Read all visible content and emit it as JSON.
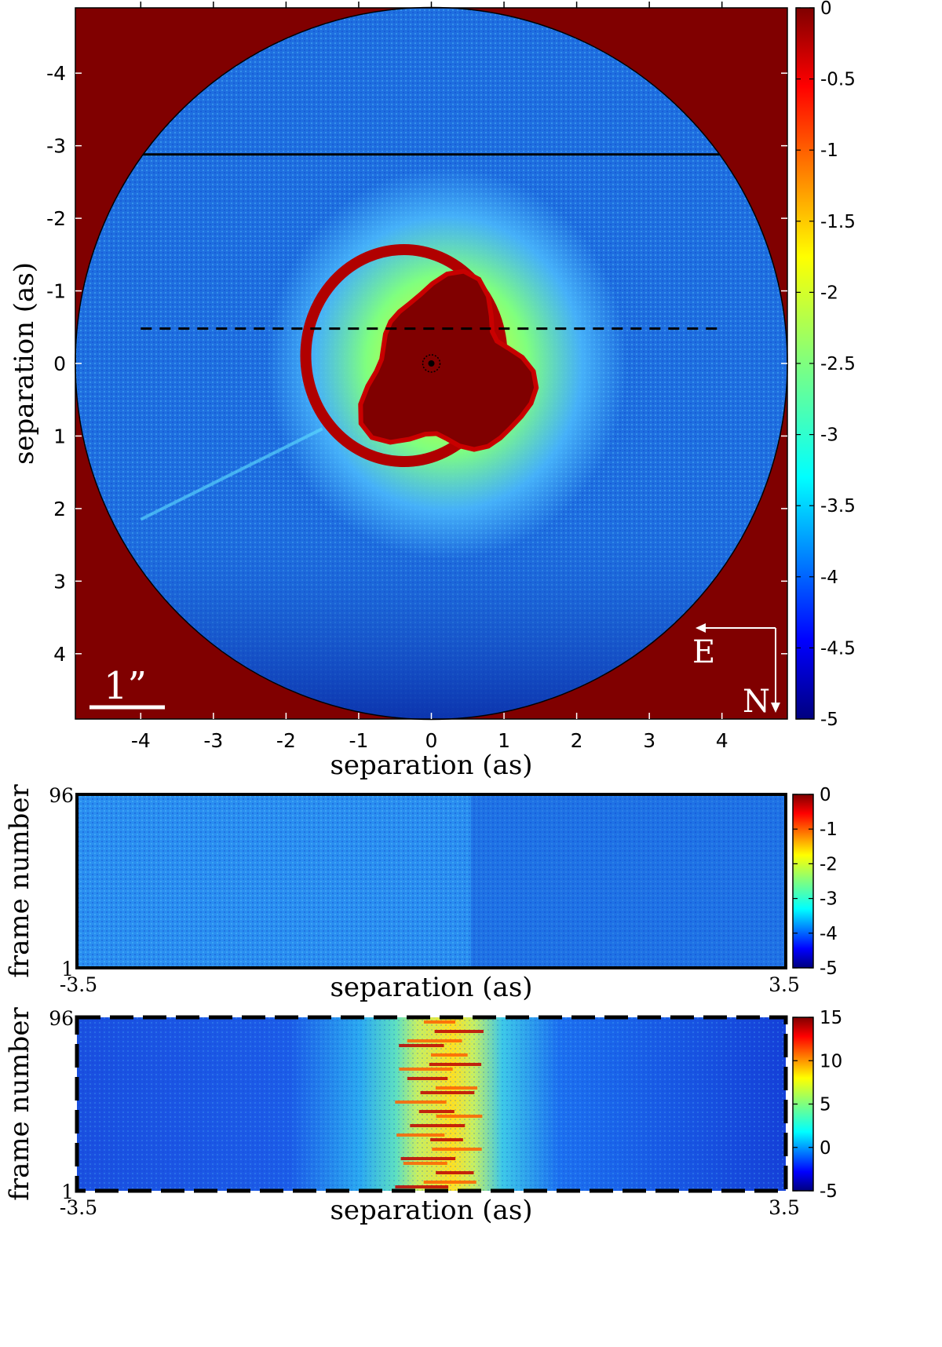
{
  "chart_data": [
    {
      "type": "heatmap",
      "id": "main-image",
      "xlabel": "separation (as)",
      "ylabel": "separation (as)",
      "xlim": [
        -4.9,
        4.9
      ],
      "ylim": [
        -4.9,
        4.9
      ],
      "x_ticks": [
        -4,
        -3,
        -2,
        -1,
        0,
        1,
        2,
        3,
        4
      ],
      "x_tick_labels": [
        "-4",
        "-3",
        "-2",
        "-1",
        "0",
        "1",
        "2",
        "3",
        "4"
      ],
      "y_ticks": [
        -4,
        -3,
        -2,
        -1,
        0,
        1,
        2,
        3,
        4
      ],
      "y_tick_labels": [
        "-4",
        "-3",
        "-2",
        "-1",
        "0",
        "1",
        "2",
        "3",
        "4"
      ],
      "colorbar": {
        "range": [
          -5,
          0
        ],
        "ticks": [
          0,
          -0.5,
          -1,
          -1.5,
          -2,
          -2.5,
          -3,
          -3.5,
          -4,
          -4.5,
          -5
        ],
        "tick_labels": [
          "0",
          "-0.5",
          "-1",
          "-1.5",
          "-2",
          "-2.5",
          "-3",
          "-3.5",
          "-4",
          "-4.5",
          "-5"
        ]
      },
      "solid_cut_y": -2.88,
      "dashed_cut_y": -0.48,
      "scale_bar_label": "1”",
      "compass": {
        "east": "E",
        "north": "N"
      }
    },
    {
      "type": "heatmap",
      "id": "solid-cut-panel",
      "xlabel": "separation (as)",
      "ylabel": "frame number",
      "xlim": [
        -3.5,
        3.5
      ],
      "x_tick_labels": [
        "-3.5",
        "3.5"
      ],
      "ylim": [
        1,
        96
      ],
      "y_tick_labels": [
        "96",
        "1"
      ],
      "colorbar": {
        "range": [
          -5,
          0
        ],
        "ticks": [
          0,
          -1,
          -2,
          -3,
          -4,
          -5
        ],
        "tick_labels": [
          "0",
          "-1",
          "-2",
          "-3",
          "-4",
          "-5"
        ]
      }
    },
    {
      "type": "heatmap",
      "id": "dashed-cut-panel",
      "xlabel": "separation (as)",
      "ylabel": "frame number",
      "xlim": [
        -3.5,
        3.5
      ],
      "x_tick_labels": [
        "-3.5",
        "3.5"
      ],
      "ylim": [
        1,
        96
      ],
      "y_tick_labels": [
        "96",
        "1"
      ],
      "colorbar": {
        "range": [
          -5,
          15
        ],
        "ticks": [
          15,
          10,
          5,
          0,
          -5
        ],
        "tick_labels": [
          "15",
          "10",
          "5",
          "0",
          "-5"
        ]
      }
    }
  ],
  "colors": {
    "dark_red": "#800000",
    "mid_blue": "#1f6fe0",
    "jet": [
      "#00007f",
      "#0000ff",
      "#007fff",
      "#00ffff",
      "#7fff7f",
      "#ffff00",
      "#ff7f00",
      "#ff0000",
      "#7f0000"
    ]
  }
}
